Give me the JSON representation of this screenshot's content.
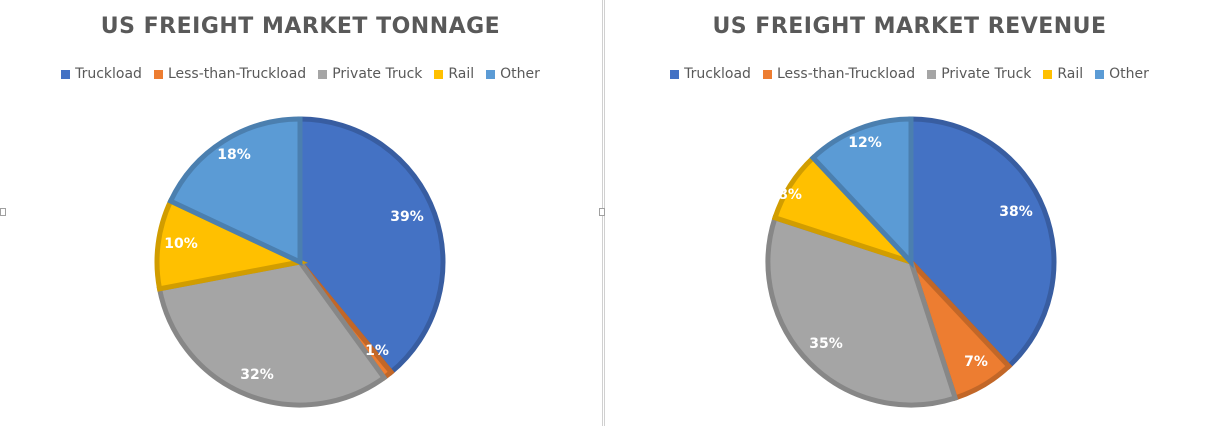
{
  "colors": {
    "truckload": "#4472c4",
    "ltl": "#ed7d31",
    "private_truck": "#a5a5a5",
    "rail": "#ffc000",
    "other": "#5b9bd5"
  },
  "chart_data": [
    {
      "type": "pie",
      "title": "US FREIGHT MARKET TONNAGE",
      "legend_position": "top",
      "categories": [
        "Truckload",
        "Less-than-Truckload",
        "Private Truck",
        "Rail",
        "Other"
      ],
      "values": [
        39,
        1,
        32,
        10,
        18
      ],
      "labels": [
        "39%",
        "1%",
        "32%",
        "10%",
        "18%"
      ]
    },
    {
      "type": "pie",
      "title": "US FREIGHT MARKET REVENUE",
      "legend_position": "top",
      "categories": [
        "Truckload",
        "Less-than-Truckload",
        "Private Truck",
        "Rail",
        "Other"
      ],
      "values": [
        38,
        7,
        35,
        8,
        12
      ],
      "labels": [
        "38%",
        "7%",
        "35%",
        "8%",
        "12%"
      ]
    }
  ]
}
